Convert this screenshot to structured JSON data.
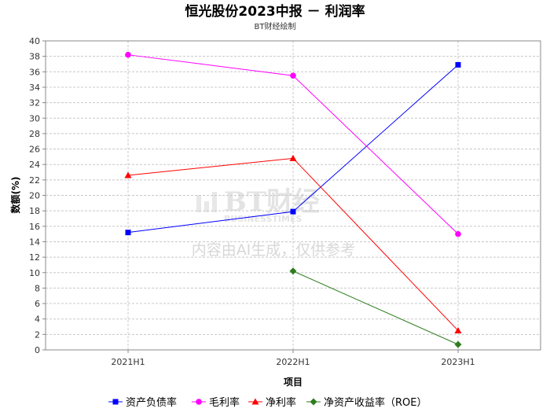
{
  "chart_data": {
    "type": "line",
    "title": "恒光股份2023中报 － 利润率",
    "subtitle": "BT财经绘制",
    "xlabel": "项目",
    "ylabel": "数额(%)",
    "categories": [
      "2021H1",
      "2022H1",
      "2023H1"
    ],
    "ylim": [
      0,
      40
    ],
    "yticks": [
      0,
      2,
      4,
      6,
      8,
      10,
      12,
      14,
      16,
      18,
      20,
      22,
      24,
      26,
      28,
      30,
      32,
      34,
      36,
      38,
      40
    ],
    "grid": true,
    "legend_position": "bottom",
    "series": [
      {
        "name": "资产负债率",
        "color": "#0000ff",
        "marker": "square",
        "values": [
          15.2,
          17.9,
          36.9
        ]
      },
      {
        "name": "毛利率",
        "color": "#ff00ff",
        "marker": "circle",
        "values": [
          38.2,
          35.5,
          15.0
        ]
      },
      {
        "name": "净利率",
        "color": "#ff0000",
        "marker": "triangle",
        "values": [
          22.6,
          24.8,
          2.5
        ]
      },
      {
        "name": "净资产收益率（ROE）",
        "color": "#2e7d1e",
        "marker": "diamond",
        "values": [
          null,
          10.2,
          0.7
        ]
      }
    ]
  },
  "watermark": {
    "brand": "BT财经",
    "brand_sub": "BUSINESSTIMES",
    "note": "内容由AI生成，仅供参考"
  }
}
